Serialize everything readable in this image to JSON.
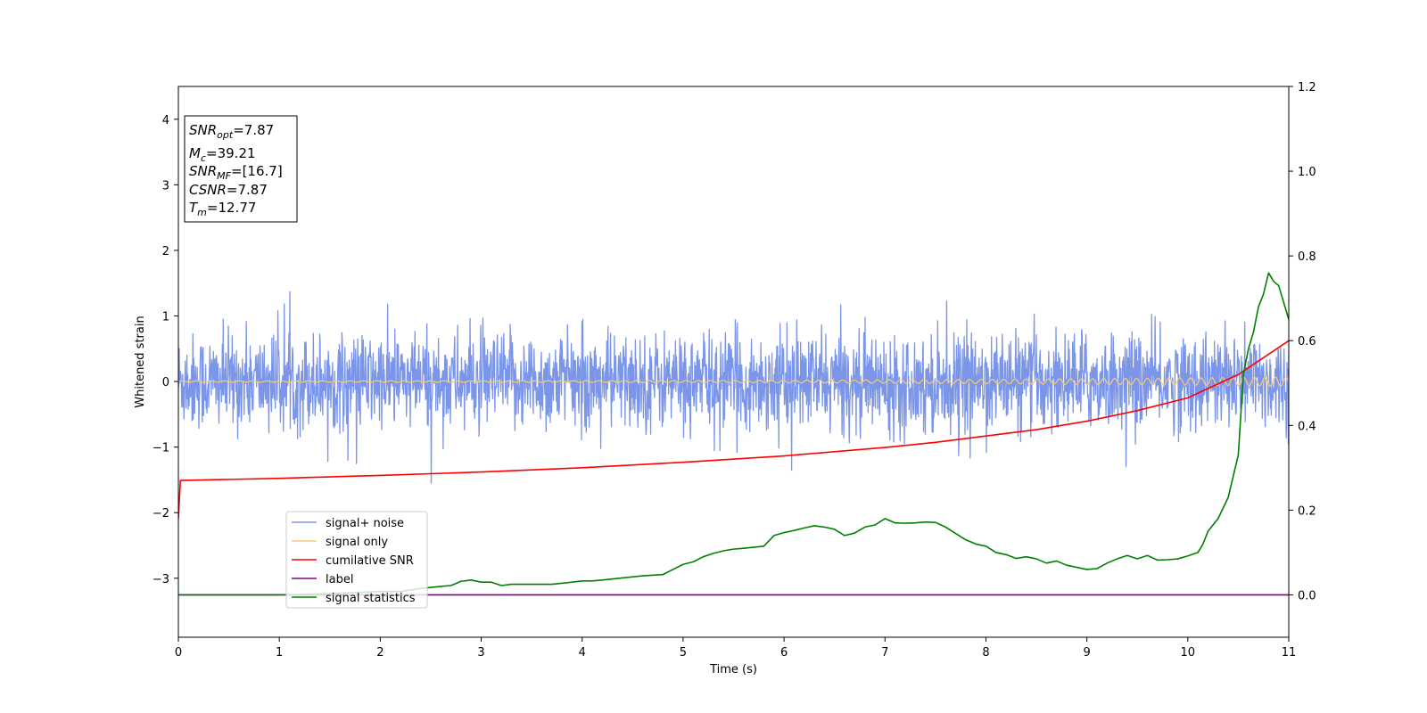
{
  "chart_data": {
    "type": "line",
    "title": "",
    "xlabel": "Time (s)",
    "ylabel_left": "Whitened strain",
    "ylabel_right": "",
    "xlim": [
      0,
      11
    ],
    "ylim_left": [
      -3.9,
      4.5
    ],
    "ylim_right": [
      -0.1,
      1.2
    ],
    "x_ticks": [
      0,
      1,
      2,
      3,
      4,
      5,
      6,
      7,
      8,
      9,
      10,
      11
    ],
    "x_tick_labels": [
      "0",
      "1",
      "2",
      "3",
      "4",
      "5",
      "6",
      "7",
      "8",
      "9",
      "10",
      "11"
    ],
    "y_ticks_left": [
      -3,
      -2,
      -1,
      0,
      1,
      2,
      3,
      4
    ],
    "y_tick_labels_left": [
      "−3",
      "−2",
      "−1",
      "0",
      "1",
      "2",
      "3",
      "4"
    ],
    "y_ticks_right": [
      0.0,
      0.2,
      0.4,
      0.6,
      0.8,
      1.0,
      1.2
    ],
    "y_tick_labels_right": [
      "0.0",
      "0.2",
      "0.4",
      "0.6",
      "0.8",
      "1.0",
      "1.2"
    ],
    "grid": false,
    "legend_placement": "lower-left",
    "annotation": {
      "lines": [
        {
          "main": "SNR",
          "sub": "opt",
          "value": "=7.87"
        },
        {
          "main": "M",
          "sub": "c",
          "value": "=39.21"
        },
        {
          "main": "SNR",
          "sub": "MF",
          "value": "=[16.7]"
        },
        {
          "main": "CSNR",
          "sub": "",
          "value": "=7.87"
        },
        {
          "main": "T",
          "sub": "m",
          "value": "=12.77"
        }
      ]
    },
    "series": [
      {
        "name": "signal+ noise",
        "axis": "left",
        "color": "#7b96e8",
        "style": "noise",
        "amplitude_typical": 0.5,
        "range": [
          -1.7,
          1.6
        ]
      },
      {
        "name": "signal only",
        "axis": "left",
        "color": "#f5c77a",
        "style": "chirp",
        "amplitude_start": 0.01,
        "amplitude_end": 0.07
      },
      {
        "name": "cumilative SNR",
        "axis": "right",
        "color": "#ff0000",
        "x": [
          0,
          0.02,
          1,
          2,
          3,
          4,
          5,
          6,
          7,
          7.5,
          8,
          8.5,
          9,
          9.5,
          10,
          10.5,
          11
        ],
        "y": [
          0.18,
          0.27,
          0.275,
          0.282,
          0.29,
          0.3,
          0.313,
          0.328,
          0.348,
          0.36,
          0.375,
          0.39,
          0.41,
          0.435,
          0.465,
          0.52,
          0.6
        ]
      },
      {
        "name": "label",
        "axis": "right",
        "color": "#800080",
        "x": [
          0,
          11
        ],
        "y": [
          0,
          0
        ]
      },
      {
        "name": "signal statistics",
        "axis": "right",
        "color": "#008000",
        "x": [
          0,
          0.5,
          1,
          1.5,
          2,
          2.2,
          2.4,
          2.6,
          2.7,
          2.8,
          2.9,
          3.0,
          3.1,
          3.2,
          3.3,
          3.5,
          3.7,
          3.9,
          4.0,
          4.1,
          4.2,
          4.4,
          4.6,
          4.8,
          4.9,
          5.0,
          5.1,
          5.2,
          5.3,
          5.4,
          5.5,
          5.6,
          5.8,
          5.9,
          6.0,
          6.1,
          6.2,
          6.3,
          6.4,
          6.5,
          6.6,
          6.7,
          6.8,
          6.9,
          7.0,
          7.1,
          7.2,
          7.3,
          7.4,
          7.5,
          7.6,
          7.7,
          7.8,
          7.9,
          8.0,
          8.1,
          8.2,
          8.3,
          8.4,
          8.5,
          8.6,
          8.7,
          8.8,
          8.9,
          9.0,
          9.1,
          9.2,
          9.3,
          9.4,
          9.5,
          9.6,
          9.7,
          9.8,
          9.9,
          10.0,
          10.1,
          10.15,
          10.2,
          10.3,
          10.4,
          10.5,
          10.55,
          10.6,
          10.65,
          10.7,
          10.75,
          10.8,
          10.85,
          10.9,
          11.0
        ],
        "y": [
          0.0,
          0.0,
          0.0,
          0.003,
          0.008,
          0.008,
          0.015,
          0.02,
          0.022,
          0.032,
          0.035,
          0.03,
          0.03,
          0.022,
          0.025,
          0.025,
          0.025,
          0.03,
          0.033,
          0.033,
          0.035,
          0.04,
          0.045,
          0.048,
          0.06,
          0.072,
          0.078,
          0.09,
          0.098,
          0.104,
          0.108,
          0.11,
          0.115,
          0.14,
          0.147,
          0.152,
          0.158,
          0.163,
          0.16,
          0.155,
          0.14,
          0.146,
          0.16,
          0.165,
          0.18,
          0.17,
          0.169,
          0.17,
          0.172,
          0.171,
          0.16,
          0.145,
          0.13,
          0.12,
          0.115,
          0.1,
          0.095,
          0.086,
          0.09,
          0.085,
          0.075,
          0.08,
          0.07,
          0.065,
          0.06,
          0.062,
          0.075,
          0.085,
          0.093,
          0.085,
          0.093,
          0.082,
          0.083,
          0.085,
          0.092,
          0.1,
          0.12,
          0.15,
          0.18,
          0.23,
          0.33,
          0.52,
          0.58,
          0.62,
          0.68,
          0.71,
          0.76,
          0.74,
          0.73,
          0.65
        ]
      }
    ]
  }
}
